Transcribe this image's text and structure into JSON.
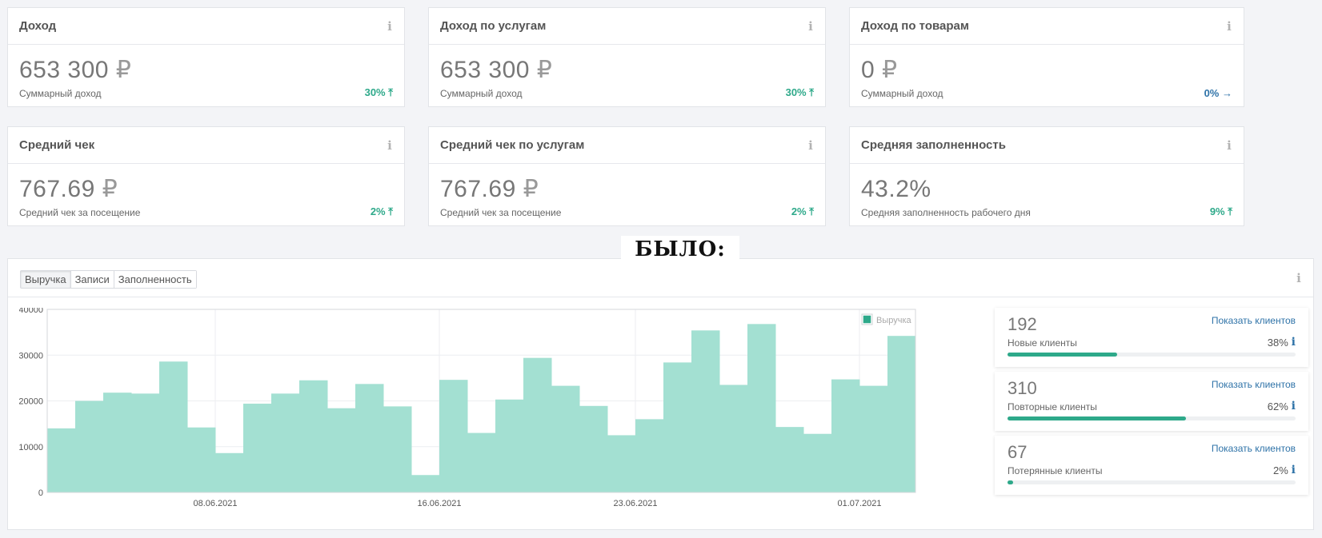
{
  "cards": [
    {
      "title": "Доход",
      "value": "653 300",
      "currency": "₽",
      "label": "Суммарный доход",
      "trend": "30%",
      "trend_dir": "up"
    },
    {
      "title": "Доход по услугам",
      "value": "653 300",
      "currency": "₽",
      "label": "Суммарный доход",
      "trend": "30%",
      "trend_dir": "up"
    },
    {
      "title": "Доход по товарам",
      "value": "0",
      "currency": "₽",
      "label": "Суммарный доход",
      "trend": "0%",
      "trend_dir": "flat"
    },
    {
      "title": "Средний чек",
      "value": "767.69",
      "currency": "₽",
      "label": "Средний чек за посещение",
      "trend": "2%",
      "trend_dir": "up"
    },
    {
      "title": "Средний чек по услугам",
      "value": "767.69",
      "currency": "₽",
      "label": "Средний чек за посещение",
      "trend": "2%",
      "trend_dir": "up"
    },
    {
      "title": "Средняя заполненность",
      "value": "43.2%",
      "currency": "",
      "label": "Средняя заполненность рабочего дня",
      "trend": "9%",
      "trend_dir": "up"
    }
  ],
  "stamp": "БЫЛО:",
  "tabs": [
    "Выручка",
    "Записи",
    "Заполненность"
  ],
  "active_tab": 0,
  "chart_data": {
    "type": "bar",
    "series": [
      {
        "name": "Выручка",
        "color": "#a3e0d2"
      }
    ],
    "values": [
      14000,
      20000,
      21800,
      21600,
      28600,
      14200,
      8600,
      19400,
      21600,
      24500,
      18400,
      23700,
      18800,
      3800,
      24600,
      13000,
      20300,
      29400,
      23300,
      18900,
      12500,
      16000,
      28400,
      35400,
      23500,
      36800,
      14300,
      12800,
      24700,
      23300,
      34200
    ],
    "ylim": [
      0,
      40000
    ],
    "yticks": [
      0,
      10000,
      20000,
      30000,
      40000
    ],
    "xtick_labels": [
      {
        "label": "08.06.2021",
        "index": 6
      },
      {
        "label": "16.06.2021",
        "index": 14
      },
      {
        "label": "23.06.2021",
        "index": 21
      },
      {
        "label": "01.07.2021",
        "index": 29
      }
    ],
    "grid": true,
    "legend": "top-right",
    "legend_label": "Выручка"
  },
  "stats": [
    {
      "count": "192",
      "label": "Новые клиенты",
      "link": "Показать клиентов",
      "pct": "38%",
      "fraction": 0.38
    },
    {
      "count": "310",
      "label": "Повторные клиенты",
      "link": "Показать клиентов",
      "pct": "62%",
      "fraction": 0.62
    },
    {
      "count": "67",
      "label": "Потерянные клиенты",
      "link": "Показать клиентов",
      "pct": "2%",
      "fraction": 0.02
    }
  ],
  "colors": {
    "accent": "#2ea98a",
    "link": "#2f73a8",
    "bar": "#a3e0d2"
  },
  "icons": {
    "info": "info-icon",
    "trend_up": "arrow-up-icon",
    "trend_flat": "arrow-right-icon"
  }
}
